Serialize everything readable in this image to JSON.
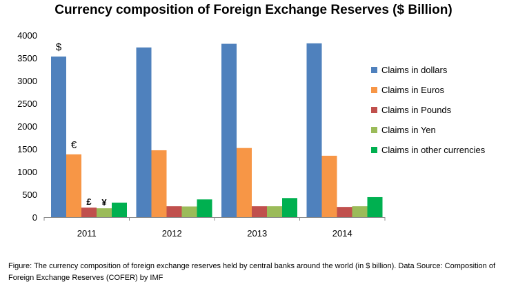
{
  "chart_data": {
    "type": "bar",
    "title": "Currency composition of Foreign Exchange Reserves ($ Billion)",
    "xlabel": "",
    "ylabel": "",
    "categories": [
      "2011",
      "2012",
      "2013",
      "2014"
    ],
    "ylim": [
      0,
      4000
    ],
    "yticks": [
      0,
      500,
      1000,
      1500,
      2000,
      2500,
      3000,
      3500,
      4000
    ],
    "grid": false,
    "legend_position": "right",
    "series": [
      {
        "name": "Claims in dollars",
        "color": "#4f81bd",
        "values": [
          3530,
          3730,
          3810,
          3820
        ]
      },
      {
        "name": "Claims in Euros",
        "color": "#f79646",
        "values": [
          1380,
          1470,
          1520,
          1350
        ]
      },
      {
        "name": "Claims in Pounds",
        "color": "#c0504d",
        "values": [
          210,
          240,
          240,
          225
        ]
      },
      {
        "name": "Claims in Yen",
        "color": "#9bbb59",
        "values": [
          195,
          235,
          240,
          240
        ]
      },
      {
        "name": "Claims in other currencies",
        "color": "#00b050",
        "values": [
          320,
          390,
          420,
          440
        ]
      }
    ],
    "annotations": [
      {
        "text": "$",
        "category": "2011",
        "series": "Claims in dollars"
      },
      {
        "text": "€",
        "category": "2011",
        "series": "Claims in Euros"
      },
      {
        "text": "£",
        "category": "2011",
        "series": "Claims in Pounds"
      },
      {
        "text": "¥",
        "category": "2011",
        "series": "Claims in Yen"
      }
    ]
  },
  "caption": "Figure: The currency composition of foreign exchange reserves held by central banks around the world (in $ billion). Data Source: Composition of Foreign Exchange Reserves (COFER) by IMF"
}
